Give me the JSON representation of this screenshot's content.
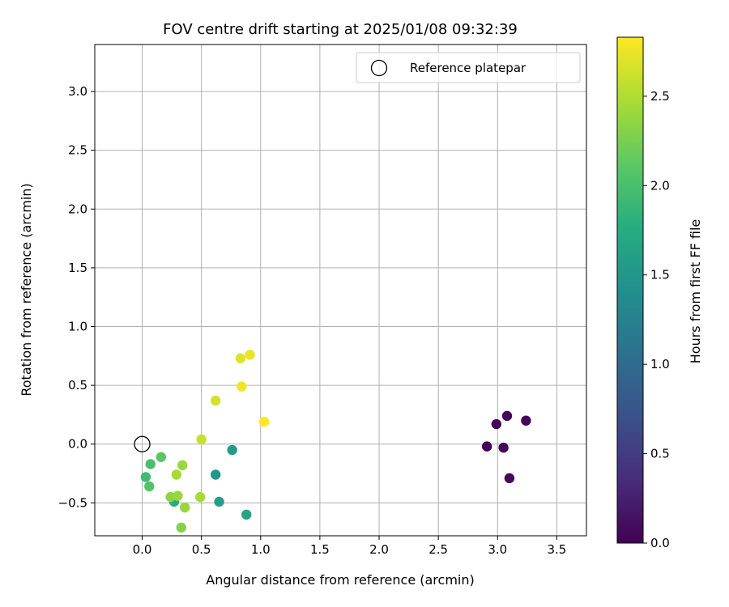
{
  "chart_data": {
    "type": "scatter",
    "title": "FOV centre drift starting at 2025/01/08 09:32:39",
    "xlabel": "Angular distance from reference (arcmin)",
    "ylabel": "Rotation from reference (arcmin)",
    "xlim": [
      -0.4,
      3.75
    ],
    "ylim": [
      -0.78,
      3.4
    ],
    "xticks": [
      0.0,
      0.5,
      1.0,
      1.5,
      2.0,
      2.5,
      3.0,
      3.5
    ],
    "xtick_labels": [
      "0.0",
      "0.5",
      "1.0",
      "1.5",
      "2.0",
      "2.5",
      "3.0",
      "3.5"
    ],
    "yticks": [
      -0.5,
      0.0,
      0.5,
      1.0,
      1.5,
      2.0,
      2.5,
      3.0
    ],
    "ytick_labels": [
      "−0.5",
      "0.0",
      "0.5",
      "1.0",
      "1.5",
      "2.0",
      "2.5",
      "3.0"
    ],
    "grid": true,
    "legend": {
      "placement": "top-right",
      "entries": [
        {
          "label": "Reference platepar",
          "marker": "open-circle",
          "color": "#000000"
        }
      ]
    },
    "reference_point": {
      "x": 0.0,
      "y": 0.0
    },
    "colorbar": {
      "label": "Hours from first FF file",
      "colormap": "viridis",
      "range": [
        0.0,
        2.83
      ],
      "ticks": [
        0.0,
        0.5,
        1.0,
        1.5,
        2.0,
        2.5
      ],
      "tick_labels": [
        "0.0",
        "0.5",
        "1.0",
        "1.5",
        "2.0",
        "2.5"
      ]
    },
    "points": [
      {
        "x": 2.91,
        "y": -0.02,
        "c": 0.02
      },
      {
        "x": 2.99,
        "y": 0.17,
        "c": 0.03
      },
      {
        "x": 3.05,
        "y": -0.03,
        "c": 0.05
      },
      {
        "x": 3.08,
        "y": 0.24,
        "c": 0.04
      },
      {
        "x": 3.1,
        "y": -0.29,
        "c": 0.06
      },
      {
        "x": 3.24,
        "y": 0.2,
        "c": 0.05
      },
      {
        "x": 0.76,
        "y": -0.05,
        "c": 1.55
      },
      {
        "x": 0.62,
        "y": -0.26,
        "c": 1.5
      },
      {
        "x": 0.65,
        "y": -0.49,
        "c": 1.58
      },
      {
        "x": 0.88,
        "y": -0.6,
        "c": 1.65
      },
      {
        "x": 0.27,
        "y": -0.49,
        "c": 1.75
      },
      {
        "x": 0.03,
        "y": -0.28,
        "c": 1.95
      },
      {
        "x": 0.06,
        "y": -0.36,
        "c": 2.05
      },
      {
        "x": 0.07,
        "y": -0.17,
        "c": 2.0
      },
      {
        "x": 0.16,
        "y": -0.11,
        "c": 2.1
      },
      {
        "x": 0.24,
        "y": -0.45,
        "c": 2.35
      },
      {
        "x": 0.3,
        "y": -0.44,
        "c": 2.4
      },
      {
        "x": 0.29,
        "y": -0.26,
        "c": 2.45
      },
      {
        "x": 0.34,
        "y": -0.18,
        "c": 2.4
      },
      {
        "x": 0.36,
        "y": -0.54,
        "c": 2.4
      },
      {
        "x": 0.33,
        "y": -0.71,
        "c": 2.3
      },
      {
        "x": 0.49,
        "y": -0.45,
        "c": 2.45
      },
      {
        "x": 0.5,
        "y": 0.04,
        "c": 2.6
      },
      {
        "x": 0.62,
        "y": 0.37,
        "c": 2.65
      },
      {
        "x": 0.83,
        "y": 0.73,
        "c": 2.7
      },
      {
        "x": 0.91,
        "y": 0.76,
        "c": 2.75
      },
      {
        "x": 0.84,
        "y": 0.49,
        "c": 2.78
      },
      {
        "x": 1.03,
        "y": 0.19,
        "c": 2.83
      }
    ]
  }
}
